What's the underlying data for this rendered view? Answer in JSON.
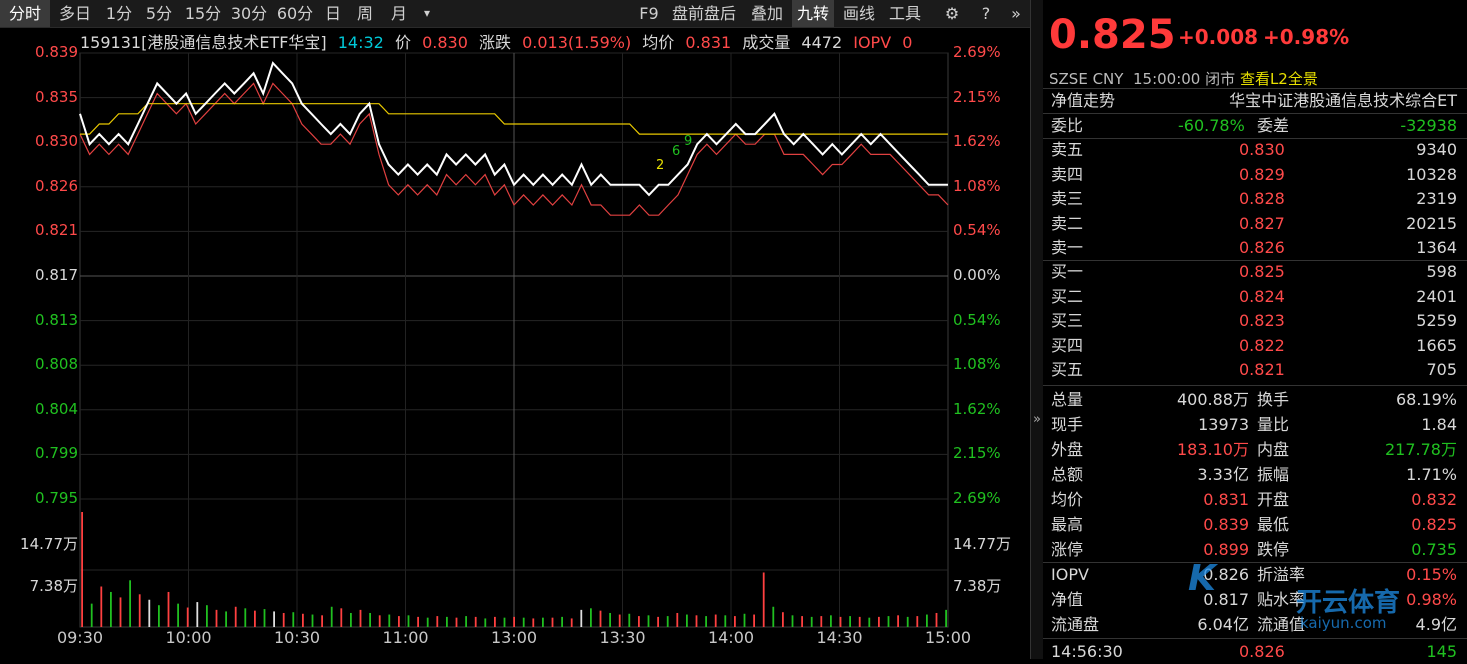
{
  "toolbar": {
    "left": [
      "分时",
      "多日",
      "1分",
      "5分",
      "15分",
      "30分",
      "60分",
      "日",
      "周",
      "月"
    ],
    "dropdown": "▾",
    "right": [
      "F9",
      "盘前盘后",
      "叠加",
      "九转",
      "画线",
      "工具"
    ]
  },
  "info": {
    "code_name": "159131[港股通信息技术ETF华宝]",
    "time": "14:32",
    "price_label": "价",
    "price": "0.830",
    "change_label": "涨跌",
    "change": "0.013(1.59%)",
    "avg_label": "均价",
    "avg": "0.831",
    "vol_label": "成交量",
    "vol": "4472",
    "iopv_label": "IOPV",
    "iopv_val": "0"
  },
  "axis": {
    "left_prices": [
      "0.839",
      "0.835",
      "0.830",
      "0.826",
      "0.821",
      "0.817",
      "0.813",
      "0.808",
      "0.804",
      "0.799",
      "0.795"
    ],
    "right_pcts": [
      "2.69%",
      "2.15%",
      "1.62%",
      "1.08%",
      "0.54%",
      "0.00%",
      "0.54%",
      "1.08%",
      "1.62%",
      "2.15%",
      "2.69%"
    ],
    "vol_left": [
      "14.77万",
      "7.38万"
    ],
    "vol_right": [
      "14.77万",
      "7.38万"
    ],
    "x_labels": [
      "09:30",
      "10:00",
      "10:30",
      "11:00",
      "13:00",
      "13:30",
      "14:00",
      "14:30",
      "15:00"
    ],
    "markers": [
      "2",
      "6",
      "9"
    ]
  },
  "chart_data": {
    "type": "line",
    "ylim": [
      0.795,
      0.839
    ],
    "prev_close": 0.817,
    "series": [
      {
        "name": "price",
        "values": [
          0.833,
          0.83,
          0.831,
          0.83,
          0.831,
          0.83,
          0.832,
          0.834,
          0.836,
          0.835,
          0.834,
          0.835,
          0.833,
          0.834,
          0.835,
          0.836,
          0.835,
          0.836,
          0.837,
          0.835,
          0.838,
          0.837,
          0.836,
          0.834,
          0.833,
          0.832,
          0.831,
          0.832,
          0.831,
          0.833,
          0.834,
          0.83,
          0.828,
          0.827,
          0.828,
          0.827,
          0.828,
          0.827,
          0.829,
          0.828,
          0.829,
          0.828,
          0.829,
          0.827,
          0.828,
          0.826,
          0.827,
          0.826,
          0.827,
          0.826,
          0.827,
          0.826,
          0.828,
          0.826,
          0.827,
          0.826,
          0.826,
          0.826,
          0.826,
          0.825,
          0.826,
          0.826,
          0.827,
          0.828,
          0.83,
          0.831,
          0.83,
          0.831,
          0.832,
          0.831,
          0.831,
          0.832,
          0.833,
          0.831,
          0.83,
          0.831,
          0.83,
          0.829,
          0.83,
          0.829,
          0.83,
          0.831,
          0.83,
          0.831,
          0.83,
          0.829,
          0.828,
          0.827,
          0.826,
          0.826,
          0.826
        ]
      },
      {
        "name": "avg",
        "values": [
          0.831,
          0.831,
          0.832,
          0.832,
          0.833,
          0.833,
          0.833,
          0.834,
          0.834,
          0.834,
          0.834,
          0.834,
          0.834,
          0.834,
          0.834,
          0.834,
          0.834,
          0.834,
          0.834,
          0.834,
          0.834,
          0.834,
          0.834,
          0.834,
          0.834,
          0.834,
          0.834,
          0.834,
          0.834,
          0.834,
          0.834,
          0.834,
          0.833,
          0.833,
          0.833,
          0.833,
          0.833,
          0.833,
          0.833,
          0.833,
          0.833,
          0.833,
          0.833,
          0.833,
          0.832,
          0.832,
          0.832,
          0.832,
          0.832,
          0.832,
          0.832,
          0.832,
          0.832,
          0.832,
          0.832,
          0.832,
          0.832,
          0.832,
          0.831,
          0.831,
          0.831,
          0.831,
          0.831,
          0.831,
          0.831,
          0.831,
          0.831,
          0.831,
          0.831,
          0.831,
          0.831,
          0.831,
          0.831,
          0.831,
          0.831,
          0.831,
          0.831,
          0.831,
          0.831,
          0.831,
          0.831,
          0.831,
          0.831,
          0.831,
          0.831,
          0.831,
          0.831,
          0.831,
          0.831,
          0.831,
          0.831
        ]
      },
      {
        "name": "iopv",
        "values": [
          0.831,
          0.829,
          0.83,
          0.829,
          0.83,
          0.829,
          0.831,
          0.833,
          0.835,
          0.834,
          0.833,
          0.834,
          0.832,
          0.833,
          0.834,
          0.835,
          0.834,
          0.835,
          0.836,
          0.834,
          0.836,
          0.835,
          0.834,
          0.832,
          0.831,
          0.83,
          0.83,
          0.831,
          0.83,
          0.832,
          0.833,
          0.829,
          0.826,
          0.825,
          0.826,
          0.825,
          0.826,
          0.825,
          0.827,
          0.826,
          0.827,
          0.826,
          0.827,
          0.825,
          0.826,
          0.824,
          0.825,
          0.824,
          0.825,
          0.824,
          0.825,
          0.824,
          0.826,
          0.824,
          0.824,
          0.823,
          0.823,
          0.823,
          0.824,
          0.823,
          0.823,
          0.824,
          0.825,
          0.827,
          0.829,
          0.83,
          0.829,
          0.83,
          0.831,
          0.83,
          0.83,
          0.831,
          0.831,
          0.829,
          0.829,
          0.829,
          0.828,
          0.827,
          0.828,
          0.828,
          0.829,
          0.83,
          0.829,
          0.829,
          0.829,
          0.828,
          0.827,
          0.826,
          0.825,
          0.825,
          0.824
        ]
      }
    ],
    "volume_max": 147700,
    "volume": [
      147700,
      30000,
      52000,
      45000,
      38000,
      60000,
      42000,
      35000,
      28000,
      45000,
      30000,
      25000,
      32000,
      28000,
      22000,
      20000,
      26000,
      24000,
      21000,
      23000,
      20000,
      18000,
      19000,
      17000,
      16000,
      15000,
      26000,
      24000,
      18000,
      22000,
      18000,
      15000,
      16000,
      14000,
      15000,
      13000,
      12000,
      14000,
      13000,
      12000,
      14000,
      13000,
      11000,
      13000,
      12000,
      13000,
      12000,
      11000,
      12000,
      12000,
      13000,
      11000,
      22000,
      24000,
      21000,
      18000,
      16000,
      17000,
      14000,
      15000,
      13000,
      14000,
      18000,
      16000,
      15000,
      14000,
      16000,
      15000,
      14000,
      17000,
      16000,
      70000,
      26000,
      19000,
      15000,
      14000,
      13000,
      14000,
      15000,
      13000,
      14000,
      13000,
      12000,
      13000,
      14000,
      15000,
      13000,
      14000,
      16000,
      18000,
      22000
    ],
    "volume_colors": [
      "r",
      "g",
      "r",
      "g",
      "r",
      "g",
      "r",
      "w",
      "g",
      "r",
      "g",
      "r",
      "w",
      "g",
      "r",
      "g",
      "r",
      "g",
      "r",
      "g",
      "w",
      "r",
      "g",
      "r",
      "g",
      "r",
      "g",
      "r",
      "g",
      "r",
      "g",
      "r",
      "g",
      "r",
      "g",
      "r",
      "g",
      "r",
      "g",
      "r",
      "g",
      "r",
      "g",
      "r",
      "g",
      "r",
      "g",
      "r",
      "g",
      "r",
      "g",
      "r",
      "w",
      "g",
      "r",
      "g",
      "r",
      "g",
      "r",
      "g",
      "r",
      "g",
      "r",
      "g",
      "r",
      "g",
      "r",
      "g",
      "r",
      "g",
      "r",
      "r",
      "g",
      "r",
      "g",
      "r",
      "g",
      "r",
      "g",
      "r",
      "g",
      "r",
      "g",
      "r",
      "g",
      "r",
      "g",
      "r",
      "g",
      "r",
      "g"
    ]
  },
  "panel": {
    "price": "0.825",
    "change": "+0.008",
    "pct": "+0.98%",
    "exchange": "SZSE",
    "currency": "CNY",
    "time": "15:00:00",
    "status": "闭市",
    "l2": "查看L2全景",
    "nav_trend": "净值走势",
    "fund_name": "华宝中证港股通信息技术综合ET",
    "weibi_label": "委比",
    "weibi": "-60.78%",
    "weicha_label": "委差",
    "weicha": "-32938",
    "asks": [
      {
        "label": "卖五",
        "price": "0.830",
        "vol": "9340"
      },
      {
        "label": "卖四",
        "price": "0.829",
        "vol": "10328"
      },
      {
        "label": "卖三",
        "price": "0.828",
        "vol": "2319"
      },
      {
        "label": "卖二",
        "price": "0.827",
        "vol": "20215"
      },
      {
        "label": "卖一",
        "price": "0.826",
        "vol": "1364"
      }
    ],
    "bids": [
      {
        "label": "买一",
        "price": "0.825",
        "vol": "598"
      },
      {
        "label": "买二",
        "price": "0.824",
        "vol": "2401"
      },
      {
        "label": "买三",
        "price": "0.823",
        "vol": "5259"
      },
      {
        "label": "买四",
        "price": "0.822",
        "vol": "1665"
      },
      {
        "label": "买五",
        "price": "0.821",
        "vol": "705"
      }
    ],
    "stats": [
      {
        "l1": "总量",
        "v1": "400.88万",
        "c1": "w",
        "l2": "换手",
        "v2": "68.19%",
        "c2": "w"
      },
      {
        "l1": "现手",
        "v1": "13973",
        "c1": "w",
        "l2": "量比",
        "v2": "1.84",
        "c2": "w"
      },
      {
        "l1": "外盘",
        "v1": "183.10万",
        "c1": "r",
        "l2": "内盘",
        "v2": "217.78万",
        "c2": "g"
      },
      {
        "l1": "总额",
        "v1": "3.33亿",
        "c1": "w",
        "l2": "振幅",
        "v2": "1.71%",
        "c2": "w"
      },
      {
        "l1": "均价",
        "v1": "0.831",
        "c1": "r",
        "l2": "开盘",
        "v2": "0.832",
        "c2": "r"
      },
      {
        "l1": "最高",
        "v1": "0.839",
        "c1": "r",
        "l2": "最低",
        "v2": "0.825",
        "c2": "r"
      },
      {
        "l1": "涨停",
        "v1": "0.899",
        "c1": "r",
        "l2": "跌停",
        "v2": "0.735",
        "c2": "g"
      }
    ],
    "stats2": [
      {
        "l1": "IOPV",
        "v1": "0.826",
        "c1": "w",
        "l2": "折溢率",
        "v2": "0.15%",
        "c2": "r"
      },
      {
        "l1": "净值",
        "v1": "0.817",
        "c1": "w",
        "l2": "贴水率",
        "v2": "0.98%",
        "c2": "r"
      },
      {
        "l1": "流通盘",
        "v1": "6.04亿",
        "c1": "w",
        "l2": "流通值",
        "v2": "4.9亿",
        "c2": "w"
      }
    ],
    "last_trade": {
      "time": "14:56:30",
      "price": "0.826",
      "vol": "145"
    },
    "watermark1": "K",
    "watermark2": "开云体育",
    "watermark3": "kaiyun.com"
  }
}
